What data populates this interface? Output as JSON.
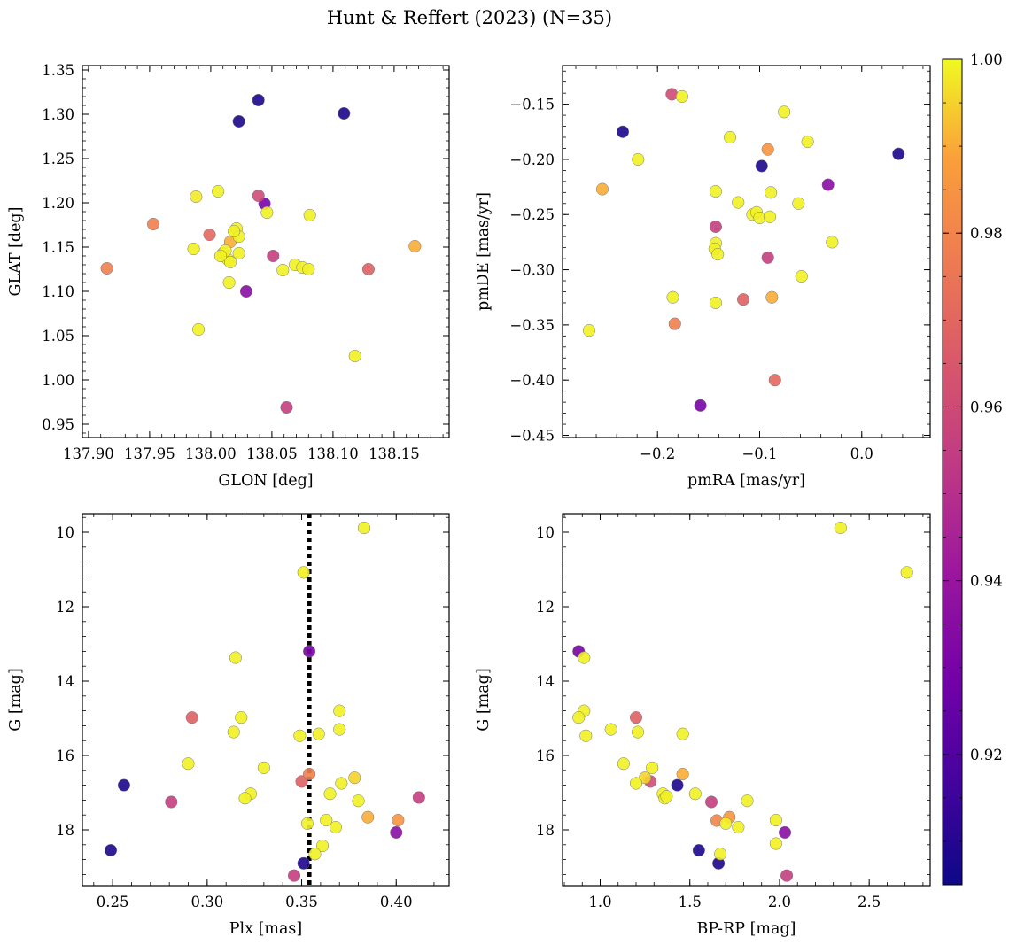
{
  "title": "Hunt & Reffert (2023) (N=35)",
  "colorbar": {
    "colormap": "plasma",
    "range": [
      0.905,
      1.0
    ],
    "ticks": [
      0.92,
      0.94,
      0.96,
      0.98,
      1.0
    ],
    "tick_labels": [
      "0.92",
      "0.94",
      "0.96",
      "0.98",
      "1.00"
    ]
  },
  "chart_data": [
    {
      "type": "scatter",
      "xlabel": "GLON [deg]",
      "ylabel": "GLAT [deg]",
      "xlim": [
        137.895,
        138.195
      ],
      "ylim": [
        0.935,
        1.355
      ],
      "x_ticks": [
        137.9,
        137.95,
        138.0,
        138.05,
        138.1,
        138.15
      ],
      "x_tick_labels": [
        "137.90",
        "137.95",
        "138.00",
        "138.05",
        "138.10",
        "138.15"
      ],
      "y_ticks": [
        0.95,
        1.0,
        1.05,
        1.1,
        1.15,
        1.2,
        1.25,
        1.3,
        1.35
      ],
      "y_tick_labels": [
        "0.95",
        "1.00",
        "1.05",
        "1.10",
        "1.15",
        "1.20",
        "1.25",
        "1.30",
        "1.35"
      ],
      "y_inverted": false,
      "grid": false,
      "points": [
        {
          "x": 138.039,
          "y": 1.316,
          "c": 0.908
        },
        {
          "x": 138.023,
          "y": 1.292,
          "c": 0.908
        },
        {
          "x": 138.109,
          "y": 1.301,
          "c": 0.908
        },
        {
          "x": 138.044,
          "y": 1.199,
          "c": 0.93
        },
        {
          "x": 138.029,
          "y": 1.1,
          "c": 0.935
        },
        {
          "x": 138.039,
          "y": 1.208,
          "c": 0.96
        },
        {
          "x": 138.051,
          "y": 1.14,
          "c": 0.955
        },
        {
          "x": 138.062,
          "y": 0.969,
          "c": 0.955
        },
        {
          "x": 138.129,
          "y": 1.125,
          "c": 0.968
        },
        {
          "x": 137.999,
          "y": 1.164,
          "c": 0.97
        },
        {
          "x": 137.953,
          "y": 1.176,
          "c": 0.978
        },
        {
          "x": 137.915,
          "y": 1.126,
          "c": 0.978
        },
        {
          "x": 138.167,
          "y": 1.151,
          "c": 0.99
        },
        {
          "x": 138.016,
          "y": 1.156,
          "c": 0.99
        },
        {
          "x": 137.988,
          "y": 1.207,
          "c": 0.998
        },
        {
          "x": 138.006,
          "y": 1.213,
          "c": 0.999
        },
        {
          "x": 138.021,
          "y": 1.171,
          "c": 0.999
        },
        {
          "x": 138.023,
          "y": 1.162,
          "c": 0.999
        },
        {
          "x": 138.019,
          "y": 1.168,
          "c": 0.999
        },
        {
          "x": 138.046,
          "y": 1.189,
          "c": 0.999
        },
        {
          "x": 138.081,
          "y": 1.186,
          "c": 0.999
        },
        {
          "x": 137.986,
          "y": 1.148,
          "c": 0.999
        },
        {
          "x": 138.01,
          "y": 1.143,
          "c": 0.999
        },
        {
          "x": 138.014,
          "y": 1.136,
          "c": 0.999
        },
        {
          "x": 138.016,
          "y": 1.133,
          "c": 0.999
        },
        {
          "x": 138.023,
          "y": 1.143,
          "c": 0.999
        },
        {
          "x": 138.012,
          "y": 1.146,
          "c": 0.999
        },
        {
          "x": 138.059,
          "y": 1.124,
          "c": 0.999
        },
        {
          "x": 138.069,
          "y": 1.13,
          "c": 0.999
        },
        {
          "x": 138.075,
          "y": 1.127,
          "c": 0.999
        },
        {
          "x": 138.08,
          "y": 1.125,
          "c": 0.999
        },
        {
          "x": 138.015,
          "y": 1.11,
          "c": 0.999
        },
        {
          "x": 137.99,
          "y": 1.057,
          "c": 0.999
        },
        {
          "x": 138.118,
          "y": 1.027,
          "c": 0.999
        },
        {
          "x": 138.008,
          "y": 1.14,
          "c": 0.999
        }
      ]
    },
    {
      "type": "scatter",
      "xlabel": "pmRA [mas/yr]",
      "ylabel": "pmDE [mas/yr]",
      "xlim": [
        -0.293,
        0.067
      ],
      "ylim": [
        -0.452,
        -0.115
      ],
      "x_ticks": [
        -0.2,
        -0.1,
        0.0
      ],
      "x_tick_labels": [
        "−0.2",
        "−0.1",
        "0.0"
      ],
      "y_ticks": [
        -0.45,
        -0.4,
        -0.35,
        -0.3,
        -0.25,
        -0.2,
        -0.15
      ],
      "y_tick_labels": [
        "−0.45",
        "−0.40",
        "−0.35",
        "−0.30",
        "−0.25",
        "−0.20",
        "−0.15"
      ],
      "y_inverted": false,
      "grid": false,
      "points": [
        {
          "x": -0.234,
          "y": -0.175,
          "c": 0.908
        },
        {
          "x": 0.036,
          "y": -0.195,
          "c": 0.908
        },
        {
          "x": -0.098,
          "y": -0.206,
          "c": 0.908
        },
        {
          "x": -0.158,
          "y": -0.423,
          "c": 0.93
        },
        {
          "x": -0.033,
          "y": -0.223,
          "c": 0.935
        },
        {
          "x": -0.092,
          "y": -0.289,
          "c": 0.955
        },
        {
          "x": -0.143,
          "y": -0.261,
          "c": 0.955
        },
        {
          "x": -0.186,
          "y": -0.141,
          "c": 0.96
        },
        {
          "x": -0.116,
          "y": -0.327,
          "c": 0.968
        },
        {
          "x": -0.085,
          "y": -0.4,
          "c": 0.97
        },
        {
          "x": -0.183,
          "y": -0.349,
          "c": 0.978
        },
        {
          "x": -0.092,
          "y": -0.191,
          "c": 0.985
        },
        {
          "x": -0.088,
          "y": -0.325,
          "c": 0.99
        },
        {
          "x": -0.254,
          "y": -0.227,
          "c": 0.99
        },
        {
          "x": -0.176,
          "y": -0.143,
          "c": 0.999
        },
        {
          "x": -0.076,
          "y": -0.157,
          "c": 0.999
        },
        {
          "x": -0.219,
          "y": -0.2,
          "c": 0.999
        },
        {
          "x": -0.129,
          "y": -0.18,
          "c": 0.999
        },
        {
          "x": -0.053,
          "y": -0.184,
          "c": 0.999
        },
        {
          "x": -0.143,
          "y": -0.229,
          "c": 0.999
        },
        {
          "x": -0.121,
          "y": -0.239,
          "c": 0.999
        },
        {
          "x": -0.089,
          "y": -0.23,
          "c": 0.999
        },
        {
          "x": -0.062,
          "y": -0.24,
          "c": 0.999
        },
        {
          "x": -0.107,
          "y": -0.25,
          "c": 0.999
        },
        {
          "x": -0.103,
          "y": -0.248,
          "c": 0.999
        },
        {
          "x": -0.1,
          "y": -0.253,
          "c": 0.999
        },
        {
          "x": -0.09,
          "y": -0.252,
          "c": 0.999
        },
        {
          "x": -0.143,
          "y": -0.276,
          "c": 0.999
        },
        {
          "x": -0.029,
          "y": -0.275,
          "c": 0.999
        },
        {
          "x": -0.144,
          "y": -0.281,
          "c": 0.999
        },
        {
          "x": -0.141,
          "y": -0.286,
          "c": 0.999
        },
        {
          "x": -0.059,
          "y": -0.306,
          "c": 0.999
        },
        {
          "x": -0.185,
          "y": -0.325,
          "c": 0.999
        },
        {
          "x": -0.143,
          "y": -0.33,
          "c": 0.999
        },
        {
          "x": -0.267,
          "y": -0.355,
          "c": 0.999
        }
      ]
    },
    {
      "type": "scatter",
      "xlabel": "Plx [mas]",
      "ylabel": "G [mag]",
      "xlim": [
        0.234,
        0.428
      ],
      "ylim": [
        19.5,
        9.5
      ],
      "x_ticks": [
        0.25,
        0.3,
        0.35,
        0.4
      ],
      "x_tick_labels": [
        "0.25",
        "0.30",
        "0.35",
        "0.40"
      ],
      "y_ticks": [
        10,
        12,
        14,
        16,
        18
      ],
      "y_tick_labels": [
        "10",
        "12",
        "14",
        "16",
        "18"
      ],
      "y_inverted": true,
      "grid": false,
      "vline_x": 0.354,
      "points": [
        {
          "x": 0.249,
          "y": 18.55,
          "c": 0.908
        },
        {
          "x": 0.256,
          "y": 16.8,
          "c": 0.908
        },
        {
          "x": 0.351,
          "y": 18.9,
          "c": 0.908
        },
        {
          "x": 0.354,
          "y": 13.2,
          "c": 0.93
        },
        {
          "x": 0.4,
          "y": 18.07,
          "c": 0.935
        },
        {
          "x": 0.281,
          "y": 17.25,
          "c": 0.955
        },
        {
          "x": 0.412,
          "y": 17.13,
          "c": 0.955
        },
        {
          "x": 0.346,
          "y": 19.23,
          "c": 0.955
        },
        {
          "x": 0.292,
          "y": 14.98,
          "c": 0.968
        },
        {
          "x": 0.35,
          "y": 16.7,
          "c": 0.968
        },
        {
          "x": 0.354,
          "y": 16.5,
          "c": 0.978
        },
        {
          "x": 0.401,
          "y": 17.74,
          "c": 0.985
        },
        {
          "x": 0.385,
          "y": 17.66,
          "c": 0.99
        },
        {
          "x": 0.378,
          "y": 16.6,
          "c": 0.995
        },
        {
          "x": 0.383,
          "y": 9.88,
          "c": 0.999
        },
        {
          "x": 0.351,
          "y": 11.08,
          "c": 0.999
        },
        {
          "x": 0.315,
          "y": 13.37,
          "c": 0.999
        },
        {
          "x": 0.37,
          "y": 14.8,
          "c": 0.999
        },
        {
          "x": 0.318,
          "y": 14.98,
          "c": 0.999
        },
        {
          "x": 0.37,
          "y": 15.3,
          "c": 0.999
        },
        {
          "x": 0.314,
          "y": 15.37,
          "c": 0.999
        },
        {
          "x": 0.359,
          "y": 15.42,
          "c": 0.999
        },
        {
          "x": 0.349,
          "y": 15.47,
          "c": 0.999
        },
        {
          "x": 0.29,
          "y": 16.22,
          "c": 0.999
        },
        {
          "x": 0.33,
          "y": 16.33,
          "c": 0.999
        },
        {
          "x": 0.371,
          "y": 16.75,
          "c": 0.999
        },
        {
          "x": 0.365,
          "y": 17.03,
          "c": 0.999
        },
        {
          "x": 0.323,
          "y": 17.03,
          "c": 0.999
        },
        {
          "x": 0.32,
          "y": 17.15,
          "c": 0.999
        },
        {
          "x": 0.38,
          "y": 17.22,
          "c": 0.999
        },
        {
          "x": 0.363,
          "y": 17.74,
          "c": 0.999
        },
        {
          "x": 0.353,
          "y": 17.83,
          "c": 0.999
        },
        {
          "x": 0.368,
          "y": 17.93,
          "c": 0.999
        },
        {
          "x": 0.361,
          "y": 18.43,
          "c": 0.999
        },
        {
          "x": 0.357,
          "y": 18.65,
          "c": 0.999
        }
      ]
    },
    {
      "type": "scatter",
      "xlabel": "BP-RP [mag]",
      "ylabel": "G [mag]",
      "xlim": [
        0.79,
        2.84
      ],
      "ylim": [
        19.5,
        9.5
      ],
      "x_ticks": [
        1.0,
        1.5,
        2.0,
        2.5
      ],
      "x_tick_labels": [
        "1.0",
        "1.5",
        "2.0",
        "2.5"
      ],
      "y_ticks": [
        10,
        12,
        14,
        16,
        18
      ],
      "y_tick_labels": [
        "10",
        "12",
        "14",
        "16",
        "18"
      ],
      "y_inverted": true,
      "grid": false,
      "points": [
        {
          "x": 1.43,
          "y": 16.8,
          "c": 0.908
        },
        {
          "x": 1.55,
          "y": 18.55,
          "c": 0.908
        },
        {
          "x": 1.66,
          "y": 18.9,
          "c": 0.908
        },
        {
          "x": 0.88,
          "y": 13.2,
          "c": 0.93
        },
        {
          "x": 2.03,
          "y": 18.07,
          "c": 0.935
        },
        {
          "x": 1.62,
          "y": 17.25,
          "c": 0.955
        },
        {
          "x": 2.04,
          "y": 19.23,
          "c": 0.955
        },
        {
          "x": 1.28,
          "y": 16.7,
          "c": 0.96
        },
        {
          "x": 1.2,
          "y": 14.98,
          "c": 0.968
        },
        {
          "x": 1.65,
          "y": 17.75,
          "c": 0.98
        },
        {
          "x": 1.72,
          "y": 17.66,
          "c": 0.985
        },
        {
          "x": 1.46,
          "y": 16.5,
          "c": 0.99
        },
        {
          "x": 1.25,
          "y": 16.6,
          "c": 0.995
        },
        {
          "x": 2.34,
          "y": 9.88,
          "c": 0.999
        },
        {
          "x": 2.71,
          "y": 11.08,
          "c": 0.999
        },
        {
          "x": 0.91,
          "y": 13.37,
          "c": 0.999
        },
        {
          "x": 0.91,
          "y": 14.8,
          "c": 0.999
        },
        {
          "x": 0.88,
          "y": 14.98,
          "c": 0.999
        },
        {
          "x": 1.06,
          "y": 15.3,
          "c": 0.999
        },
        {
          "x": 1.21,
          "y": 15.37,
          "c": 0.999
        },
        {
          "x": 1.46,
          "y": 15.42,
          "c": 0.999
        },
        {
          "x": 0.92,
          "y": 15.47,
          "c": 0.999
        },
        {
          "x": 1.13,
          "y": 16.22,
          "c": 0.999
        },
        {
          "x": 1.29,
          "y": 16.33,
          "c": 0.999
        },
        {
          "x": 1.2,
          "y": 16.75,
          "c": 0.999
        },
        {
          "x": 1.35,
          "y": 17.03,
          "c": 0.999
        },
        {
          "x": 1.53,
          "y": 17.03,
          "c": 0.999
        },
        {
          "x": 1.36,
          "y": 17.15,
          "c": 0.999
        },
        {
          "x": 1.82,
          "y": 17.22,
          "c": 0.999
        },
        {
          "x": 1.98,
          "y": 17.74,
          "c": 0.999
        },
        {
          "x": 1.7,
          "y": 17.83,
          "c": 0.999
        },
        {
          "x": 1.77,
          "y": 17.93,
          "c": 0.999
        },
        {
          "x": 1.98,
          "y": 18.37,
          "c": 0.999
        },
        {
          "x": 1.67,
          "y": 18.65,
          "c": 0.999
        },
        {
          "x": 1.37,
          "y": 17.1,
          "c": 0.999
        }
      ]
    }
  ]
}
